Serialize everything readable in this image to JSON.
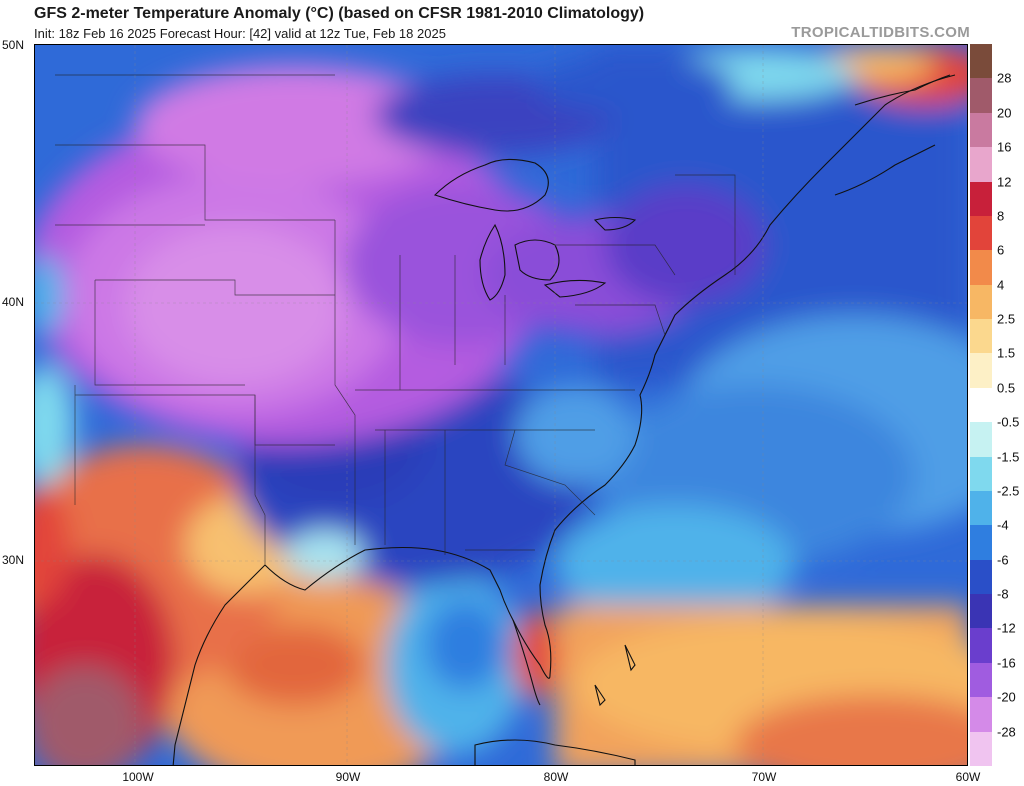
{
  "header": {
    "title": "GFS 2-meter Temperature Anomaly (°C) (based on CFSR 1981-2010 Climatology)",
    "subtitle": "Init: 18z Feb 16 2025   Forecast Hour: [42]   valid at 12z Tue, Feb 18 2025",
    "watermark": "TROPICALTIDBITS.COM"
  },
  "map": {
    "lat_labels": [
      "50N",
      "40N",
      "30N"
    ],
    "lon_labels": [
      "100W",
      "90W",
      "80W",
      "70W",
      "60W"
    ]
  },
  "colorbar": {
    "labels": [
      "28",
      "20",
      "16",
      "12",
      "8",
      "6",
      "4",
      "2.5",
      "1.5",
      "0.5",
      "-0.5",
      "-1.5",
      "-2.5",
      "-4",
      "-6",
      "-8",
      "-12",
      "-16",
      "-20",
      "-28"
    ],
    "colors": [
      "#7a4b3a",
      "#a05a6a",
      "#c97aa0",
      "#e8a6cc",
      "#c8203a",
      "#e2443a",
      "#f28a4a",
      "#f7b764",
      "#fbd88e",
      "#fdf0c6",
      "#ffffff",
      "#c6f2f2",
      "#7fd9ee",
      "#4fb2ea",
      "#2f7ee0",
      "#2a4fc8",
      "#3a34b4",
      "#6a3ecd",
      "#a05ce0",
      "#d48ae8",
      "#f0c4f0"
    ]
  }
}
